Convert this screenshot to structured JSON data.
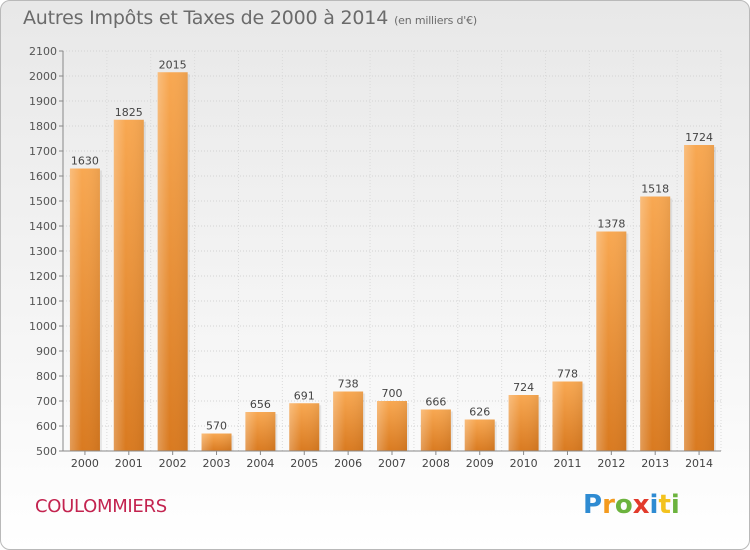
{
  "header": {
    "title": "Autres Impôts et Taxes de 2000 à 2014",
    "unit": "(en milliers d'€)"
  },
  "footer": {
    "commune": "COULOMMIERS",
    "logo_letters": [
      "P",
      "r",
      "o",
      "x",
      "i",
      "t",
      "i"
    ]
  },
  "colors": {
    "bar_light": "#f7a54e",
    "bar_dark": "#d97a20",
    "commune": "#c3234f",
    "axis": "#888888",
    "grid": "#d5d5d5"
  },
  "chart_data": {
    "type": "bar",
    "title": "Autres Impôts et Taxes de 2000 à 2014",
    "subtitle": "(en milliers d'€)",
    "categories": [
      "2000",
      "2001",
      "2002",
      "2003",
      "2004",
      "2005",
      "2006",
      "2007",
      "2008",
      "2009",
      "2010",
      "2011",
      "2012",
      "2013",
      "2014"
    ],
    "values": [
      1630,
      1825,
      2015,
      570,
      656,
      691,
      738,
      700,
      666,
      626,
      724,
      778,
      1378,
      1518,
      1724
    ],
    "ylim": [
      500,
      2100
    ],
    "yticks": [
      500,
      600,
      700,
      800,
      900,
      1000,
      1100,
      1200,
      1300,
      1400,
      1500,
      1600,
      1700,
      1800,
      1900,
      2000,
      2100
    ],
    "grid": true
  }
}
